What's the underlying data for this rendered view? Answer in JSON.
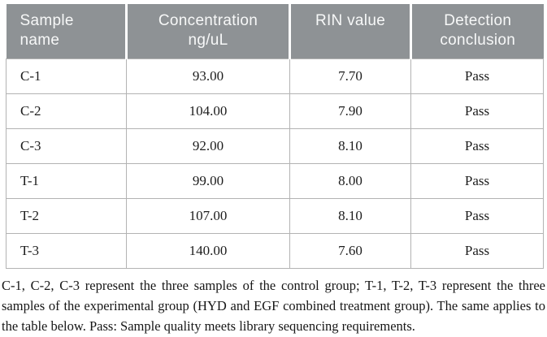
{
  "colors": {
    "header_background": "#8e9295",
    "header_text": "#f7f8f8",
    "body_text": "#1d1d1d",
    "cell_border": "#b3b3b3",
    "page_background": "#ffffff"
  },
  "table": {
    "headers": [
      {
        "line1": "Sample",
        "line2": "name"
      },
      {
        "line1": "Concentration",
        "line2": "ng/uL"
      },
      {
        "line1": "RIN value",
        "line2": ""
      },
      {
        "line1": "Detection",
        "line2": "conclusion"
      }
    ],
    "rows": [
      {
        "sample": "C-1",
        "concentration": "93.00",
        "rin": "7.70",
        "conclusion": "Pass"
      },
      {
        "sample": "C-2",
        "concentration": "104.00",
        "rin": "7.90",
        "conclusion": "Pass"
      },
      {
        "sample": "C-3",
        "concentration": "92.00",
        "rin": "8.10",
        "conclusion": "Pass"
      },
      {
        "sample": "T-1",
        "concentration": "99.00",
        "rin": "8.00",
        "conclusion": "Pass"
      },
      {
        "sample": "T-2",
        "concentration": "107.00",
        "rin": "8.10",
        "conclusion": "Pass"
      },
      {
        "sample": "T-3",
        "concentration": "140.00",
        "rin": "7.60",
        "conclusion": "Pass"
      }
    ]
  },
  "footnote": {
    "text": "C-1, C-2, C-3 represent the three samples of the control group; T-1, T-2, T-3 represent the three samples of the experimental group (HYD and EGF combined treatment group). The same applies to the table below. Pass: Sample quality meets library sequencing requirements."
  }
}
